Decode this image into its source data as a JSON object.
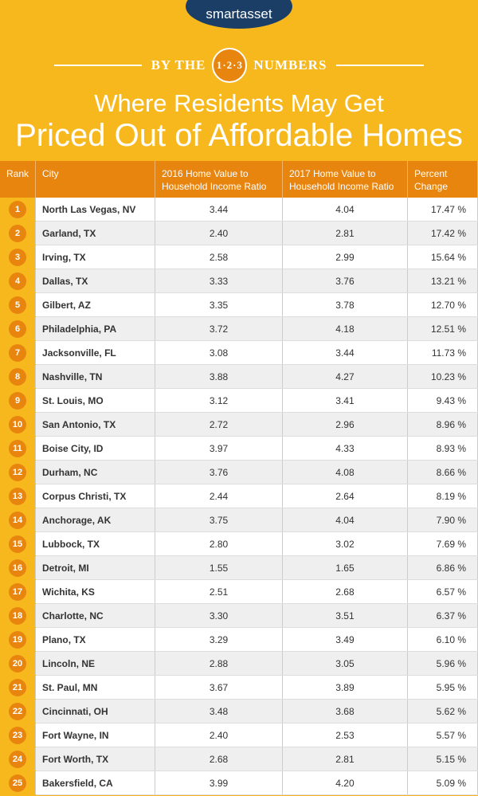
{
  "logo": "smartasset",
  "banner": {
    "left": "BY THE",
    "badge": "1·2·3",
    "right": "NUMBERS"
  },
  "title": {
    "line1": "Where Residents May Get",
    "line2": "Priced Out of Affordable Homes"
  },
  "table": {
    "header": [
      "Rank",
      "City",
      "2016 Home Value to Household Income Ratio",
      "2017 Home Value to Household Income Ratio",
      "Percent Change"
    ],
    "rows": [
      [
        "1",
        "North Las Vegas, NV",
        "3.44",
        "4.04",
        "17.47 %"
      ],
      [
        "2",
        "Garland, TX",
        "2.40",
        "2.81",
        "17.42 %"
      ],
      [
        "3",
        "Irving, TX",
        "2.58",
        "2.99",
        "15.64 %"
      ],
      [
        "4",
        "Dallas, TX",
        "3.33",
        "3.76",
        "13.21 %"
      ],
      [
        "5",
        "Gilbert, AZ",
        "3.35",
        "3.78",
        "12.70 %"
      ],
      [
        "6",
        "Philadelphia, PA",
        "3.72",
        "4.18",
        "12.51 %"
      ],
      [
        "7",
        "Jacksonville, FL",
        "3.08",
        "3.44",
        "11.73 %"
      ],
      [
        "8",
        "Nashville, TN",
        "3.88",
        "4.27",
        "10.23 %"
      ],
      [
        "9",
        "St. Louis, MO",
        "3.12",
        "3.41",
        "9.43 %"
      ],
      [
        "10",
        "San Antonio, TX",
        "2.72",
        "2.96",
        "8.96 %"
      ],
      [
        "11",
        "Boise City, ID",
        "3.97",
        "4.33",
        "8.93 %"
      ],
      [
        "12",
        "Durham, NC",
        "3.76",
        "4.08",
        "8.66 %"
      ],
      [
        "13",
        "Corpus Christi, TX",
        "2.44",
        "2.64",
        "8.19 %"
      ],
      [
        "14",
        "Anchorage, AK",
        "3.75",
        "4.04",
        "7.90 %"
      ],
      [
        "15",
        "Lubbock, TX",
        "2.80",
        "3.02",
        "7.69 %"
      ],
      [
        "16",
        "Detroit, MI",
        "1.55",
        "1.65",
        "6.86 %"
      ],
      [
        "17",
        "Wichita, KS",
        "2.51",
        "2.68",
        "6.57 %"
      ],
      [
        "18",
        "Charlotte, NC",
        "3.30",
        "3.51",
        "6.37 %"
      ],
      [
        "19",
        "Plano, TX",
        "3.29",
        "3.49",
        "6.10 %"
      ],
      [
        "20",
        "Lincoln, NE",
        "2.88",
        "3.05",
        "5.96 %"
      ],
      [
        "21",
        "St. Paul, MN",
        "3.67",
        "3.89",
        "5.95 %"
      ],
      [
        "22",
        "Cincinnati, OH",
        "3.48",
        "3.68",
        "5.62 %"
      ],
      [
        "23",
        "Fort Wayne, IN",
        "2.40",
        "2.53",
        "5.57 %"
      ],
      [
        "24",
        "Fort Worth, TX",
        "2.68",
        "2.81",
        "5.15 %"
      ],
      [
        "25",
        "Bakersfield, CA",
        "3.99",
        "4.20",
        "5.09 %"
      ]
    ]
  }
}
